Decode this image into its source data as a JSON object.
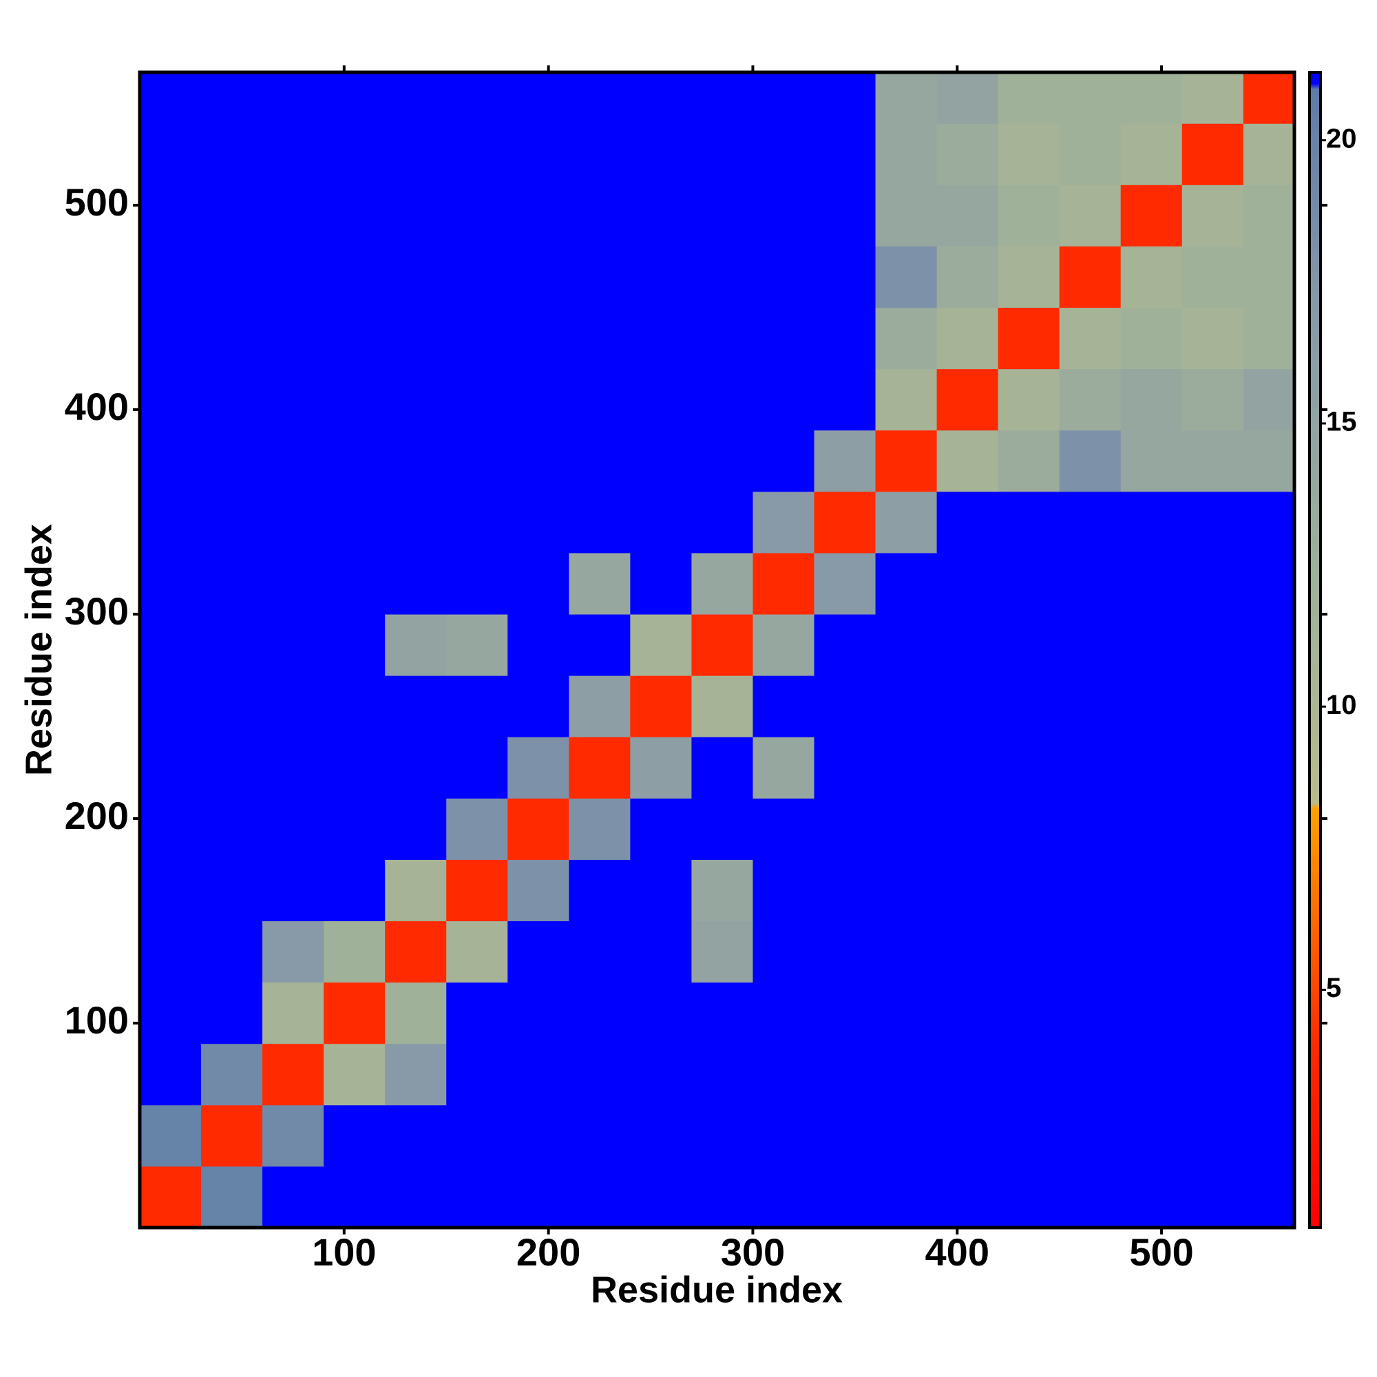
{
  "chart_data": {
    "type": "heatmap",
    "x_label": "Residue index",
    "y_label": "Residue index",
    "xlim": [
      0,
      565
    ],
    "ylim": [
      0,
      565
    ],
    "xticks": [
      100,
      200,
      300,
      400,
      500
    ],
    "yticks": [
      100,
      200,
      300,
      400,
      500
    ],
    "xbins": [
      0,
      30,
      60,
      90,
      120,
      150,
      180,
      210,
      240,
      270,
      300,
      330,
      360,
      390,
      420,
      450,
      480,
      510,
      540,
      565
    ],
    "ybins": [
      0,
      30,
      60,
      90,
      120,
      150,
      180,
      210,
      240,
      270,
      300,
      330,
      360,
      390,
      420,
      450,
      480,
      510,
      540,
      565
    ],
    "values": [
      [
        4,
        20,
        21,
        21,
        21,
        21,
        21,
        21,
        21,
        21,
        21,
        21,
        21,
        21,
        21,
        21,
        21,
        21,
        21
      ],
      [
        20,
        4,
        19,
        21,
        21,
        21,
        21,
        21,
        21,
        21,
        21,
        21,
        21,
        21,
        21,
        21,
        21,
        21,
        21
      ],
      [
        21,
        19,
        4,
        11,
        17,
        21,
        21,
        21,
        21,
        21,
        21,
        21,
        21,
        21,
        21,
        21,
        21,
        21,
        21
      ],
      [
        21,
        21,
        11,
        4,
        12,
        21,
        21,
        21,
        21,
        21,
        21,
        21,
        21,
        21,
        21,
        21,
        21,
        21,
        21
      ],
      [
        21,
        21,
        17,
        12,
        4,
        11,
        21,
        21,
        21,
        15,
        21,
        21,
        21,
        21,
        21,
        21,
        21,
        21,
        21
      ],
      [
        21,
        21,
        21,
        21,
        11,
        4,
        18,
        21,
        21,
        14,
        21,
        21,
        21,
        21,
        21,
        21,
        21,
        21,
        21
      ],
      [
        21,
        21,
        21,
        21,
        21,
        18,
        4,
        18,
        21,
        21,
        21,
        21,
        21,
        21,
        21,
        21,
        21,
        21,
        21
      ],
      [
        21,
        21,
        21,
        21,
        21,
        21,
        18,
        4,
        16,
        21,
        14,
        21,
        21,
        21,
        21,
        21,
        21,
        21,
        21
      ],
      [
        21,
        21,
        21,
        21,
        21,
        21,
        21,
        16,
        4,
        11,
        21,
        21,
        21,
        21,
        21,
        21,
        21,
        21,
        21
      ],
      [
        21,
        21,
        21,
        21,
        15,
        14,
        21,
        21,
        11,
        4,
        14,
        21,
        21,
        21,
        21,
        21,
        21,
        21,
        21
      ],
      [
        21,
        21,
        21,
        21,
        21,
        21,
        21,
        14,
        21,
        14,
        4,
        17,
        21,
        21,
        21,
        21,
        21,
        21,
        21
      ],
      [
        21,
        21,
        21,
        21,
        21,
        21,
        21,
        21,
        21,
        21,
        17,
        4,
        16,
        21,
        21,
        21,
        21,
        21,
        21
      ],
      [
        21,
        21,
        21,
        21,
        21,
        21,
        21,
        21,
        21,
        21,
        21,
        16,
        4,
        11,
        13,
        18,
        14,
        14,
        14
      ],
      [
        21,
        21,
        21,
        21,
        21,
        21,
        21,
        21,
        21,
        21,
        21,
        21,
        11,
        4,
        11,
        13,
        14,
        13,
        15
      ],
      [
        21,
        21,
        21,
        21,
        21,
        21,
        21,
        21,
        21,
        21,
        21,
        21,
        13,
        11,
        4,
        11,
        12,
        11,
        12
      ],
      [
        21,
        21,
        21,
        21,
        21,
        21,
        21,
        21,
        21,
        21,
        21,
        21,
        18,
        13,
        11,
        4,
        11,
        12,
        12
      ],
      [
        21,
        21,
        21,
        21,
        21,
        21,
        21,
        21,
        21,
        21,
        21,
        21,
        14,
        14,
        12,
        11,
        4,
        11,
        12
      ],
      [
        21,
        21,
        21,
        21,
        21,
        21,
        21,
        21,
        21,
        21,
        21,
        21,
        14,
        13,
        11,
        12,
        11,
        4,
        11
      ],
      [
        21,
        21,
        21,
        21,
        21,
        21,
        21,
        21,
        21,
        21,
        21,
        21,
        14,
        15,
        12,
        12,
        12,
        11,
        4
      ]
    ],
    "zlim": [
      0.8,
      21.2
    ],
    "zticks": [
      5,
      10,
      15,
      20
    ],
    "colorscale": [
      [
        0.8,
        "#ff0000"
      ],
      [
        4,
        "#ff2a00"
      ],
      [
        8.2,
        "#ffa000"
      ],
      [
        8.3,
        "#b8ba8a"
      ],
      [
        12,
        "#a0b19a"
      ],
      [
        17,
        "#8899a8"
      ],
      [
        20.9,
        "#5c7ca8"
      ],
      [
        21,
        "#0000ff"
      ],
      [
        21.2,
        "#0000ff"
      ]
    ]
  }
}
